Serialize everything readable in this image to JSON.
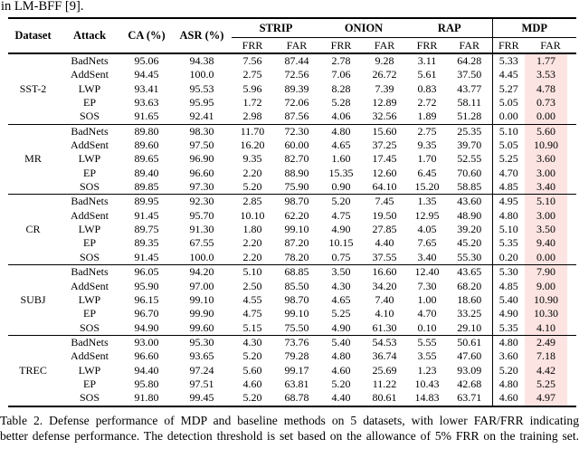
{
  "page": {
    "top_fragment": "in LM-BFF [9].",
    "caption": {
      "line1": "Table 2. Defense performance of MDP and baseline methods on 5 datasets, with lower FAR/FRR indicating",
      "line2": "better defense performance. The detection threshold is set based on the allowance of 5% FRR on the training set."
    }
  },
  "table": {
    "columns": [
      "Dataset",
      "Attack",
      "CA (%)",
      "ASR (%)"
    ],
    "group_headers": [
      "STRIP",
      "ONION",
      "RAP",
      "MDP"
    ],
    "sub_headers": [
      "FRR",
      "FAR"
    ],
    "highlight_color": "#fce4e2",
    "groups": [
      {
        "dataset": "SST-2",
        "rows": [
          {
            "attack": "BadNets",
            "values": [
              "95.06",
              "94.38",
              "7.56",
              "87.44",
              "2.78",
              "9.28",
              "3.11",
              "64.28",
              "5.33",
              "1.77"
            ]
          },
          {
            "attack": "AddSent",
            "values": [
              "94.45",
              "100.0",
              "2.75",
              "72.56",
              "7.06",
              "26.72",
              "5.61",
              "37.50",
              "4.45",
              "3.53"
            ]
          },
          {
            "attack": "LWP",
            "values": [
              "93.41",
              "95.53",
              "5.96",
              "89.39",
              "8.28",
              "7.39",
              "0.83",
              "43.77",
              "5.27",
              "4.78"
            ]
          },
          {
            "attack": "EP",
            "values": [
              "93.63",
              "95.95",
              "1.72",
              "72.06",
              "5.28",
              "12.89",
              "2.72",
              "58.11",
              "5.05",
              "0.73"
            ]
          },
          {
            "attack": "SOS",
            "values": [
              "91.65",
              "92.41",
              "2.98",
              "87.56",
              "4.06",
              "32.56",
              "1.89",
              "51.28",
              "0.00",
              "0.00"
            ]
          }
        ]
      },
      {
        "dataset": "MR",
        "rows": [
          {
            "attack": "BadNets",
            "values": [
              "89.80",
              "98.30",
              "11.70",
              "72.30",
              "4.80",
              "15.60",
              "2.75",
              "25.35",
              "5.10",
              "5.60"
            ]
          },
          {
            "attack": "AddSent",
            "values": [
              "89.60",
              "97.50",
              "16.20",
              "60.00",
              "4.65",
              "37.25",
              "9.35",
              "39.70",
              "5.05",
              "10.90"
            ]
          },
          {
            "attack": "LWP",
            "values": [
              "89.65",
              "96.90",
              "9.35",
              "82.70",
              "1.60",
              "17.45",
              "1.70",
              "52.55",
              "5.25",
              "3.60"
            ]
          },
          {
            "attack": "EP",
            "values": [
              "89.40",
              "96.60",
              "2.20",
              "88.90",
              "15.35",
              "12.60",
              "6.45",
              "70.60",
              "4.70",
              "3.00"
            ]
          },
          {
            "attack": "SOS",
            "values": [
              "89.85",
              "97.30",
              "5.20",
              "75.90",
              "0.90",
              "64.10",
              "15.20",
              "58.85",
              "4.85",
              "3.40"
            ]
          }
        ]
      },
      {
        "dataset": "CR",
        "rows": [
          {
            "attack": "BadNets",
            "values": [
              "89.95",
              "92.30",
              "2.85",
              "98.70",
              "5.20",
              "7.45",
              "1.35",
              "43.60",
              "4.95",
              "5.10"
            ]
          },
          {
            "attack": "AddSent",
            "values": [
              "91.45",
              "95.70",
              "10.10",
              "62.20",
              "4.75",
              "19.50",
              "12.95",
              "48.90",
              "4.80",
              "3.00"
            ]
          },
          {
            "attack": "LWP",
            "values": [
              "89.75",
              "91.30",
              "1.80",
              "99.10",
              "4.90",
              "27.85",
              "4.05",
              "39.20",
              "5.10",
              "3.50"
            ]
          },
          {
            "attack": "EP",
            "values": [
              "89.35",
              "67.55",
              "2.20",
              "87.20",
              "10.15",
              "4.40",
              "7.65",
              "45.20",
              "5.35",
              "9.40"
            ]
          },
          {
            "attack": "SOS",
            "values": [
              "91.45",
              "100.0",
              "2.20",
              "78.20",
              "0.75",
              "37.55",
              "3.40",
              "55.30",
              "0.20",
              "0.00"
            ]
          }
        ]
      },
      {
        "dataset": "SUBJ",
        "rows": [
          {
            "attack": "BadNets",
            "values": [
              "96.05",
              "94.20",
              "5.10",
              "68.85",
              "3.50",
              "16.60",
              "12.40",
              "43.65",
              "5.30",
              "7.90"
            ]
          },
          {
            "attack": "AddSent",
            "values": [
              "95.90",
              "97.00",
              "2.50",
              "85.50",
              "4.30",
              "34.20",
              "7.30",
              "68.20",
              "4.85",
              "9.00"
            ]
          },
          {
            "attack": "LWP",
            "values": [
              "96.15",
              "99.10",
              "4.55",
              "98.70",
              "4.65",
              "7.40",
              "1.00",
              "18.60",
              "5.40",
              "10.90"
            ]
          },
          {
            "attack": "EP",
            "values": [
              "96.70",
              "99.90",
              "4.75",
              "99.10",
              "5.25",
              "4.10",
              "4.70",
              "33.25",
              "4.90",
              "10.30"
            ]
          },
          {
            "attack": "SOS",
            "values": [
              "94.90",
              "99.60",
              "5.15",
              "75.50",
              "4.90",
              "61.30",
              "0.10",
              "29.10",
              "5.35",
              "4.10"
            ]
          }
        ]
      },
      {
        "dataset": "TREC",
        "rows": [
          {
            "attack": "BadNets",
            "values": [
              "93.00",
              "95.30",
              "4.30",
              "73.76",
              "5.40",
              "54.53",
              "5.55",
              "50.61",
              "4.80",
              "2.49"
            ]
          },
          {
            "attack": "AddSent",
            "values": [
              "96.60",
              "93.65",
              "5.20",
              "79.28",
              "4.80",
              "36.74",
              "3.55",
              "47.60",
              "3.60",
              "7.18"
            ]
          },
          {
            "attack": "LWP",
            "values": [
              "94.40",
              "97.24",
              "5.60",
              "99.17",
              "4.60",
              "25.69",
              "1.23",
              "93.09",
              "5.20",
              "4.42"
            ]
          },
          {
            "attack": "EP",
            "values": [
              "95.80",
              "97.51",
              "4.60",
              "63.81",
              "5.20",
              "11.22",
              "10.43",
              "42.68",
              "4.80",
              "5.25"
            ]
          },
          {
            "attack": "SOS",
            "values": [
              "91.80",
              "99.45",
              "5.20",
              "68.78",
              "4.40",
              "80.61",
              "14.83",
              "63.71",
              "4.60",
              "4.97"
            ]
          }
        ]
      }
    ]
  }
}
